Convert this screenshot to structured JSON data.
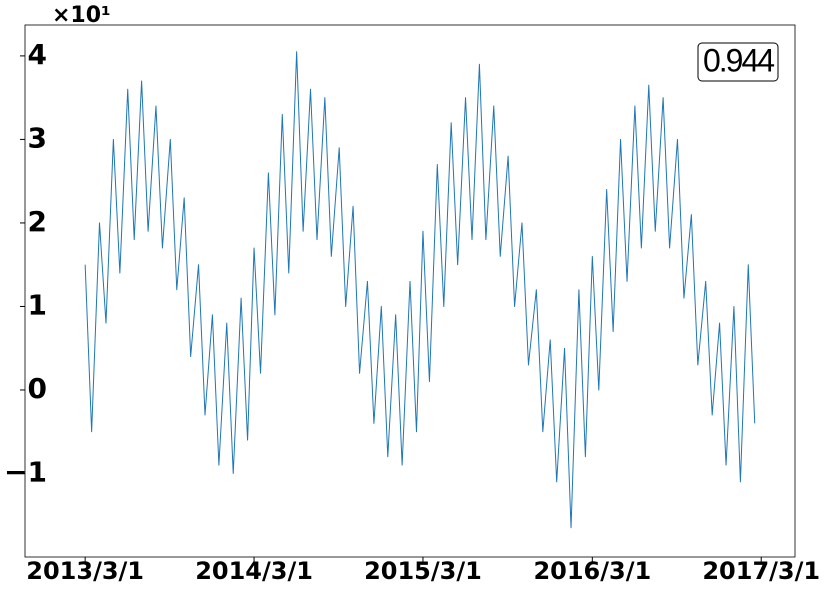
{
  "chart_data": {
    "type": "line",
    "offset_label": "×10¹",
    "annotation": "0.944",
    "x": [
      "2013/3/1",
      "2013/3/15",
      "2013/4/1",
      "2013/4/15",
      "2013/5/1",
      "2013/5/15",
      "2013/6/1",
      "2013/6/15",
      "2013/7/1",
      "2013/7/15",
      "2013/8/1",
      "2013/8/15",
      "2013/9/1",
      "2013/9/15",
      "2013/10/1",
      "2013/10/15",
      "2013/11/1",
      "2013/11/15",
      "2013/12/1",
      "2013/12/15",
      "2014/1/1",
      "2014/1/15",
      "2014/2/1",
      "2014/2/15",
      "2014/3/1",
      "2014/3/15",
      "2014/4/1",
      "2014/4/15",
      "2014/5/1",
      "2014/5/15",
      "2014/6/1",
      "2014/6/15",
      "2014/7/1",
      "2014/7/15",
      "2014/8/1",
      "2014/8/15",
      "2014/9/1",
      "2014/9/15",
      "2014/10/1",
      "2014/10/15",
      "2014/11/1",
      "2014/11/15",
      "2014/12/1",
      "2014/12/15",
      "2015/1/1",
      "2015/1/15",
      "2015/2/1",
      "2015/2/15",
      "2015/3/1",
      "2015/3/15",
      "2015/4/1",
      "2015/4/15",
      "2015/5/1",
      "2015/5/15",
      "2015/6/1",
      "2015/6/15",
      "2015/7/1",
      "2015/7/15",
      "2015/8/1",
      "2015/8/15",
      "2015/9/1",
      "2015/9/15",
      "2015/10/1",
      "2015/10/15",
      "2015/11/1",
      "2015/11/15",
      "2015/12/1",
      "2015/12/15",
      "2016/1/1",
      "2016/1/15",
      "2016/2/1",
      "2016/2/15",
      "2016/3/1",
      "2016/3/15",
      "2016/4/1",
      "2016/4/15",
      "2016/5/1",
      "2016/5/15",
      "2016/6/1",
      "2016/6/15",
      "2016/7/1",
      "2016/7/15",
      "2016/8/1",
      "2016/8/15",
      "2016/9/1",
      "2016/9/15",
      "2016/10/1",
      "2016/10/15",
      "2016/11/1",
      "2016/11/15",
      "2016/12/1",
      "2016/12/15",
      "2017/1/1",
      "2017/1/15",
      "2017/2/1",
      "2017/2/15"
    ],
    "series": [
      {
        "color": "#1f77b4",
        "values": [
          1.5,
          -0.5,
          2.0,
          0.8,
          3.0,
          1.4,
          3.6,
          1.8,
          3.7,
          1.9,
          3.4,
          1.7,
          3.0,
          1.2,
          2.3,
          0.4,
          1.5,
          -0.3,
          0.9,
          -0.9,
          0.8,
          -1.0,
          1.1,
          -0.6,
          1.7,
          0.2,
          2.6,
          0.9,
          3.3,
          1.4,
          4.05,
          1.9,
          3.6,
          1.8,
          3.5,
          1.6,
          2.9,
          1.0,
          2.2,
          0.2,
          1.3,
          -0.4,
          1.0,
          -0.8,
          0.9,
          -0.9,
          1.3,
          -0.5,
          1.9,
          0.1,
          2.7,
          1.0,
          3.2,
          1.5,
          3.5,
          1.8,
          3.9,
          1.8,
          3.4,
          1.6,
          2.8,
          1.0,
          2.0,
          0.3,
          1.2,
          -0.5,
          0.6,
          -1.1,
          0.5,
          -1.65,
          1.2,
          -0.8,
          1.6,
          0.0,
          2.4,
          0.7,
          3.0,
          1.3,
          3.4,
          1.7,
          3.65,
          1.9,
          3.5,
          1.7,
          3.0,
          1.1,
          2.1,
          0.3,
          1.3,
          -0.3,
          0.8,
          -0.9,
          1.0,
          -1.1,
          1.5,
          -0.4
        ]
      }
    ],
    "xlim": [
      "2012/10/22",
      "2017/5/13"
    ],
    "xticks": [
      "2013/3/1",
      "2014/3/1",
      "2015/3/1",
      "2016/3/1",
      "2017/3/1"
    ],
    "ylim": [
      -2.0,
      4.37
    ],
    "yticks": [
      {
        "value": -1,
        "label": "−1"
      },
      0,
      1,
      2,
      3,
      4
    ]
  }
}
